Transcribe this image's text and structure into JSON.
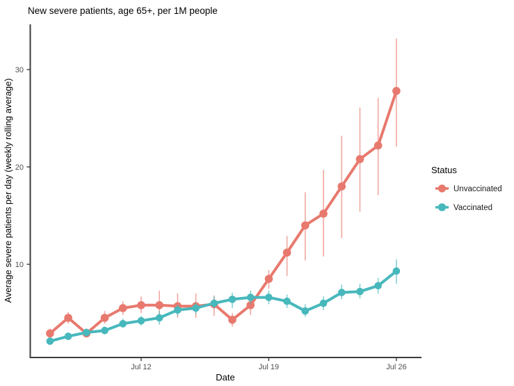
{
  "title": "New severe patients, age 65+, per 1M people",
  "chart_data": {
    "type": "line",
    "title": "New severe patients, age 65+, per 1M people",
    "xlabel": "Date",
    "ylabel": "Average severe patients per day (weekly rolling average)",
    "grid": false,
    "ylim": [
      0.5,
      34.5
    ],
    "y_ticks": [
      10,
      20,
      30
    ],
    "x_tick_labels": [
      "Jul 12",
      "Jul 19",
      "Jul 26"
    ],
    "x_tick_indices": [
      5,
      12,
      19
    ],
    "categories": [
      "Jul 7",
      "Jul 8",
      "Jul 9",
      "Jul 10",
      "Jul 11",
      "Jul 12",
      "Jul 13",
      "Jul 14",
      "Jul 15",
      "Jul 16",
      "Jul 17",
      "Jul 18",
      "Jul 19",
      "Jul 20",
      "Jul 21",
      "Jul 22",
      "Jul 23",
      "Jul 24",
      "Jul 25",
      "Jul 26"
    ],
    "legend": {
      "title": "Status",
      "position": "right"
    },
    "series": [
      {
        "name": "Unvaccinated",
        "color": "#E8796E",
        "values": [
          2.9,
          4.5,
          2.9,
          4.5,
          5.5,
          5.8,
          5.8,
          5.7,
          5.7,
          5.9,
          4.3,
          5.8,
          8.5,
          11.2,
          14.0,
          15.2,
          18.0,
          20.8,
          22.2,
          27.8
        ],
        "ci_low": [
          2.5,
          3.9,
          2.5,
          3.9,
          4.8,
          5.0,
          4.4,
          4.5,
          4.5,
          4.7,
          3.6,
          4.8,
          7.5,
          8.8,
          10.4,
          10.8,
          12.7,
          15.4,
          17.1,
          22.1
        ],
        "ci_high": [
          3.4,
          5.1,
          3.4,
          5.2,
          6.2,
          6.7,
          7.3,
          7.0,
          7.0,
          6.8,
          5.0,
          7.0,
          9.4,
          12.9,
          17.4,
          19.7,
          23.2,
          26.1,
          27.1,
          33.2
        ]
      },
      {
        "name": "Vaccinated",
        "color": "#47B8BC",
        "values": [
          2.1,
          2.6,
          3.0,
          3.2,
          3.9,
          4.2,
          4.5,
          5.3,
          5.5,
          6.0,
          6.4,
          6.6,
          6.6,
          6.2,
          5.2,
          6.0,
          7.1,
          7.2,
          7.8,
          9.3
        ],
        "ci_low": [
          1.8,
          2.3,
          2.6,
          2.8,
          3.5,
          3.7,
          3.8,
          4.7,
          4.9,
          5.4,
          5.5,
          5.9,
          5.9,
          5.5,
          4.6,
          5.3,
          6.4,
          6.5,
          7.0,
          8.0
        ],
        "ci_high": [
          2.4,
          3.0,
          3.4,
          3.6,
          4.4,
          4.7,
          5.2,
          5.9,
          6.1,
          6.7,
          7.1,
          7.3,
          7.3,
          6.9,
          5.9,
          6.7,
          7.9,
          8.0,
          8.6,
          10.5
        ]
      }
    ],
    "style": {
      "axis_color": "#3C3C3C",
      "tick_label_color": "#4D4D4D",
      "text_color": "#000000",
      "background": "#FFFFFF"
    }
  }
}
